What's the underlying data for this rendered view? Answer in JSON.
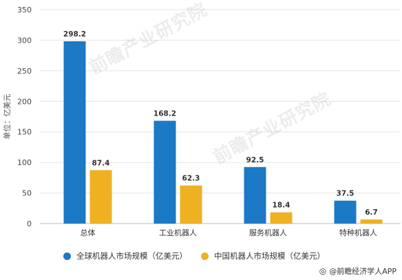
{
  "chart_data": {
    "type": "bar",
    "categories": [
      "总体",
      "工业机器人",
      "服务机器人",
      "特种机器人"
    ],
    "series": [
      {
        "name": "全球机器人市场规模（亿美元）",
        "values": [
          298.2,
          168.2,
          92.5,
          37.5
        ],
        "color": "#1c79c5"
      },
      {
        "name": "中国机器人市场规模（亿美元）",
        "values": [
          87.4,
          62.3,
          18.4,
          6.7
        ],
        "color": "#eeb122"
      }
    ],
    "data_labels": {
      "series_0": [
        "298.2",
        "168.2",
        "92.5",
        "37.5"
      ],
      "series_1": [
        "87.4",
        "62.3",
        "18.4",
        "6.7"
      ]
    },
    "yticks": [
      "0",
      "50",
      "100",
      "150",
      "200",
      "250",
      "300",
      "350"
    ],
    "ylim": [
      0,
      350
    ],
    "ylabel": "单位：亿美元",
    "xlabel": "",
    "grid": true,
    "legend_position": "bottom"
  },
  "credit": {
    "icon": "weibo-icon",
    "text": "@前瞻经济学人APP"
  },
  "watermark_text": "前瞻产业研究院"
}
